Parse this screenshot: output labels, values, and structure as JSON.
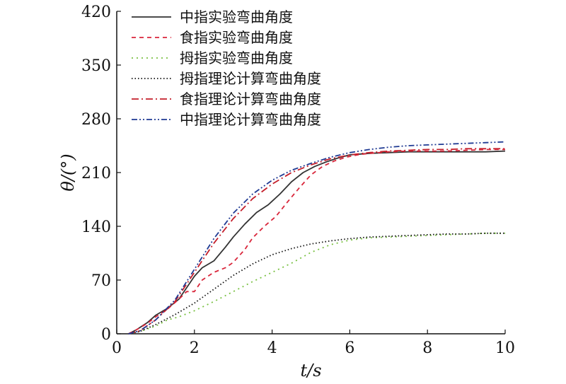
{
  "chart_data": {
    "type": "line",
    "xlabel": "t/s",
    "ylabel": "θ/(°)",
    "xlim": [
      0,
      10
    ],
    "ylim": [
      0,
      420
    ],
    "xticks": [
      0,
      2,
      4,
      6,
      8,
      10
    ],
    "yticks": [
      0,
      70,
      140,
      210,
      280,
      350,
      420
    ],
    "grid": false,
    "legend_position": "top-left",
    "series": [
      {
        "name": "中指实验弯曲角度",
        "color": "#333333",
        "dash": "solid",
        "x": [
          0.3,
          0.5,
          0.8,
          1.0,
          1.3,
          1.6,
          1.8,
          2.0,
          2.2,
          2.5,
          2.8,
          3.0,
          3.3,
          3.6,
          3.9,
          4.2,
          4.5,
          4.8,
          5.1,
          5.4,
          5.7,
          6.0,
          6.5,
          7.0,
          7.5,
          8.0,
          8.5,
          9.0,
          9.5,
          10.0
        ],
        "y": [
          0,
          5,
          15,
          24,
          33,
          45,
          60,
          75,
          86,
          95,
          113,
          126,
          143,
          158,
          168,
          182,
          198,
          210,
          218,
          224,
          229,
          233,
          235,
          236,
          237,
          237,
          237,
          237,
          237,
          238
        ]
      },
      {
        "name": "食指实验弯曲角度",
        "color": "#d9263b",
        "dash": "6,5",
        "x": [
          0.3,
          0.5,
          0.8,
          1.0,
          1.3,
          1.6,
          1.8,
          2.0,
          2.2,
          2.5,
          2.8,
          3.0,
          3.3,
          3.5,
          3.8,
          4.1,
          4.4,
          4.7,
          5.0,
          5.3,
          5.6,
          5.9,
          6.2,
          6.5,
          7.0,
          7.5,
          8.0,
          8.5,
          9.0,
          9.5,
          10.0
        ],
        "y": [
          0,
          5,
          14,
          22,
          32,
          45,
          55,
          55,
          70,
          80,
          86,
          93,
          110,
          125,
          140,
          153,
          172,
          190,
          207,
          218,
          225,
          230,
          233,
          235,
          237,
          238,
          238,
          238,
          239,
          240,
          240
        ]
      },
      {
        "name": "拇指实验弯曲角度",
        "color": "#7ac143",
        "dash": "2,5",
        "x": [
          0.3,
          0.6,
          1.0,
          1.3,
          1.6,
          2.0,
          2.5,
          3.0,
          3.5,
          4.0,
          4.5,
          5.0,
          5.5,
          6.0,
          6.5,
          7.0,
          7.5,
          8.0,
          8.5,
          9.0,
          9.5,
          10.0
        ],
        "y": [
          0,
          3,
          10,
          18,
          22,
          30,
          42,
          55,
          68,
          80,
          92,
          106,
          116,
          122,
          125,
          126,
          127,
          128,
          129,
          130,
          131,
          131
        ]
      },
      {
        "name": "拇指理论计算弯曲角度",
        "color": "#111111",
        "dash": "1.5,3",
        "x": [
          0.3,
          0.6,
          1.0,
          1.5,
          2.0,
          2.5,
          3.0,
          3.5,
          4.0,
          4.5,
          5.0,
          5.5,
          6.0,
          6.5,
          7.0,
          7.5,
          8.0,
          8.5,
          9.0,
          9.5,
          10.0
        ],
        "y": [
          0,
          3,
          12,
          25,
          40,
          58,
          76,
          91,
          103,
          111,
          117,
          121,
          124,
          126,
          127,
          128,
          129,
          130,
          130,
          131,
          131
        ]
      },
      {
        "name": "食指理论计算弯曲角度",
        "color": "#c41e2a",
        "dash": "10,4,2,4",
        "x": [
          0.3,
          0.6,
          1.0,
          1.5,
          2.0,
          2.5,
          3.0,
          3.5,
          4.0,
          4.5,
          5.0,
          5.5,
          6.0,
          6.5,
          7.0,
          7.5,
          8.0,
          8.5,
          9.0,
          9.5,
          10.0
        ],
        "y": [
          0,
          4,
          18,
          42,
          80,
          118,
          150,
          176,
          195,
          210,
          220,
          228,
          233,
          236,
          238,
          239,
          240,
          240,
          241,
          241,
          241
        ]
      },
      {
        "name": "中指理论计算弯曲角度",
        "color": "#1f3a93",
        "dash": "8,3,2,3,2,3",
        "x": [
          0.3,
          0.6,
          1.0,
          1.5,
          2.0,
          2.5,
          3.0,
          3.5,
          4.0,
          4.5,
          5.0,
          5.5,
          6.0,
          6.5,
          7.0,
          7.5,
          8.0,
          8.5,
          9.0,
          9.5,
          10.0
        ],
        "y": [
          0,
          4,
          18,
          44,
          84,
          124,
          157,
          182,
          200,
          213,
          222,
          230,
          236,
          240,
          243,
          245,
          246,
          247,
          248,
          249,
          250
        ]
      }
    ]
  }
}
